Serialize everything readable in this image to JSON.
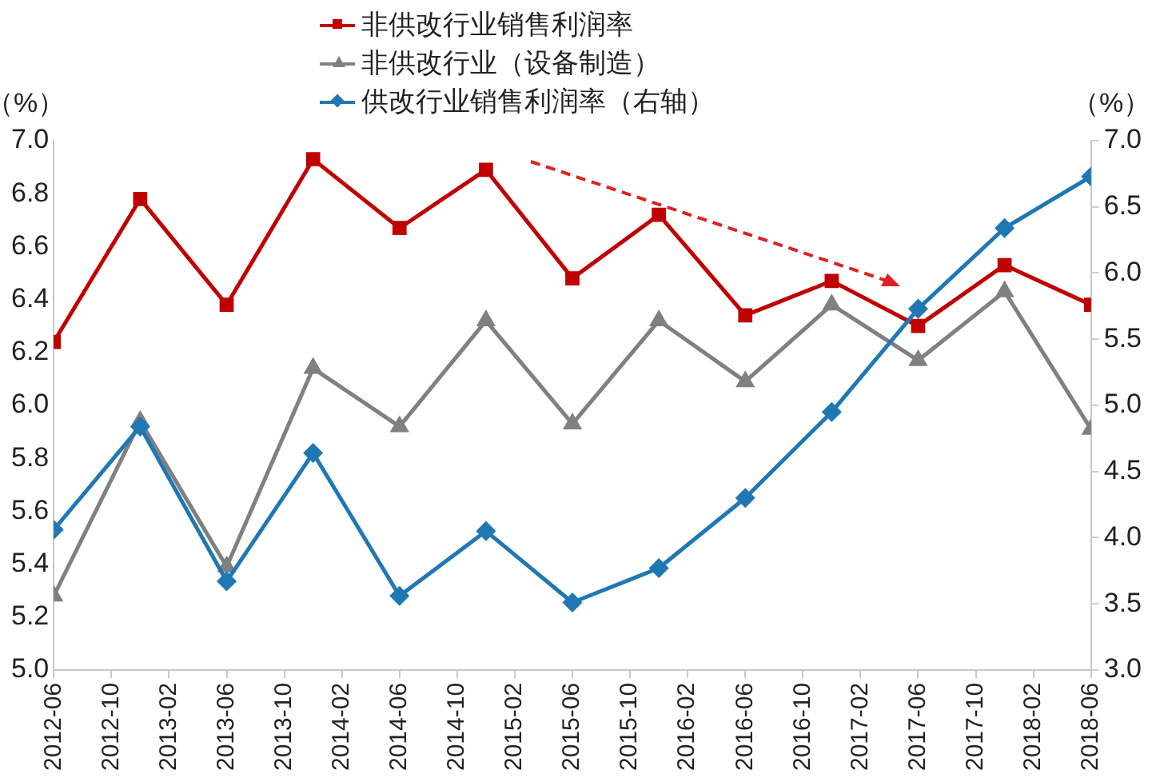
{
  "chart_data": {
    "type": "line",
    "ylabel": "（%）",
    "y2label": "（%）",
    "x": [
      "2012-06",
      "2012-12",
      "2013-06",
      "2013-12",
      "2014-06",
      "2014-12",
      "2015-06",
      "2015-12",
      "2016-06",
      "2016-12",
      "2017-06",
      "2017-12",
      "2018-06"
    ],
    "series": [
      {
        "name": "非供改行业销售利润率",
        "color": "#c00000",
        "marker": "square",
        "values": [
          6.24,
          6.78,
          6.38,
          6.93,
          6.67,
          6.89,
          6.48,
          6.72,
          6.34,
          6.47,
          6.3,
          6.53,
          6.38
        ]
      },
      {
        "name": "非供改行业（设备制造）",
        "color": "#808080",
        "marker": "triangle",
        "values": [
          5.28,
          5.94,
          5.39,
          6.14,
          5.92,
          6.32,
          5.93,
          6.32,
          6.09,
          6.38,
          6.17,
          6.43,
          5.91
        ]
      },
      {
        "name": "供改行业销售利润率（右轴）",
        "color": "#1f78b4",
        "marker": "diamond",
        "axis": "y2",
        "values": [
          4.06,
          4.84,
          3.67,
          4.64,
          3.56,
          4.05,
          3.51,
          3.77,
          4.3,
          4.95,
          5.73,
          6.34,
          6.73
        ]
      }
    ],
    "xlim": [
      "2012-06",
      "2018-06"
    ],
    "xticks": [
      "2012-06",
      "2012-10",
      "2013-02",
      "2013-06",
      "2013-10",
      "2014-02",
      "2014-06",
      "2014-10",
      "2015-02",
      "2015-06",
      "2015-10",
      "2016-02",
      "2016-06",
      "2016-10",
      "2017-02",
      "2017-06",
      "2017-10",
      "2018-02",
      "2018-06"
    ],
    "ylim": [
      5.0,
      7.0
    ],
    "yticks": [
      {
        "value": 5,
        "label": "5.0"
      },
      {
        "value": 5.2,
        "label": "5.2"
      },
      {
        "value": 5.4,
        "label": "5.4"
      },
      {
        "value": 5.6,
        "label": "5.6"
      },
      {
        "value": 5.8,
        "label": "5.8"
      },
      {
        "value": 6,
        "label": "6.0"
      },
      {
        "value": 6.2,
        "label": "6.2"
      },
      {
        "value": 6.4,
        "label": "6.4"
      },
      {
        "value": 6.6,
        "label": "6.6"
      },
      {
        "value": 6.8,
        "label": "6.8"
      },
      {
        "value": 7,
        "label": "7.0"
      }
    ],
    "y2lim": [
      3.0,
      7.0
    ],
    "y2ticks": [
      {
        "value": 3,
        "label": "3.0"
      },
      {
        "value": 3.5,
        "label": "3.5"
      },
      {
        "value": 4,
        "label": "4.0"
      },
      {
        "value": 4.5,
        "label": "4.5"
      },
      {
        "value": 5,
        "label": "5.0"
      },
      {
        "value": 5.5,
        "label": "5.5"
      },
      {
        "value": 6,
        "label": "6.0"
      },
      {
        "value": 6.5,
        "label": "6.5"
      },
      {
        "value": 7,
        "label": "7.0"
      }
    ],
    "grid": false,
    "legend": "top",
    "line_style": "solid"
  }
}
